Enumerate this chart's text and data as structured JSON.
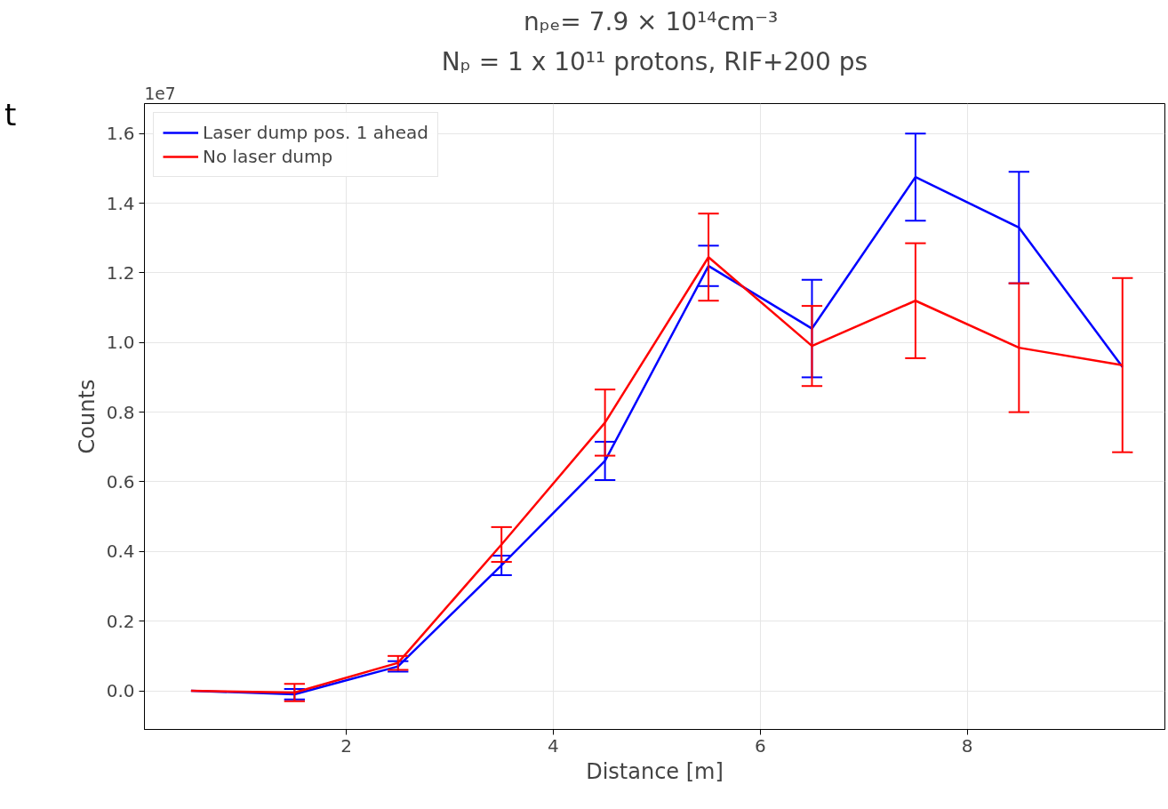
{
  "chart_data": {
    "type": "line",
    "title": "nₚₑ= 7.9  × 10¹⁴cm⁻³",
    "subtitle": "Nₚ = 1 x 10¹¹ protons, RIF+200 ps",
    "xlabel": "Distance [m]",
    "ylabel": "Counts",
    "annotations": [
      "1e7",
      "t"
    ],
    "x": [
      0.5,
      1.5,
      2.5,
      3.5,
      4.5,
      5.5,
      6.5,
      7.5,
      8.5,
      9.5
    ],
    "series": [
      {
        "name": "Laser dump pos. 1 ahead",
        "color": "#0000ff",
        "values": [
          0.0,
          -0.01,
          0.07,
          0.36,
          0.66,
          1.22,
          1.04,
          1.475,
          1.33,
          0.93
        ],
        "errors": [
          null,
          0.015,
          0.015,
          0.028,
          0.055,
          0.058,
          0.14,
          0.125,
          0.16,
          null
        ]
      },
      {
        "name": "No laser dump",
        "color": "#ff0000",
        "values": [
          0.0,
          -0.005,
          0.08,
          0.42,
          0.77,
          1.245,
          0.99,
          1.12,
          0.985,
          0.935
        ],
        "errors": [
          null,
          0.025,
          0.02,
          0.05,
          0.095,
          0.125,
          0.115,
          0.165,
          0.185,
          0.25
        ]
      }
    ],
    "xlim": [
      0.05,
      9.91
    ],
    "ylim": [
      -0.111,
      1.686
    ],
    "xticks": [
      2,
      4,
      6,
      8
    ],
    "yticks": [
      {
        "value": 0,
        "label": "0.0"
      },
      0.2,
      0.4,
      0.6,
      0.8,
      {
        "value": 1,
        "label": "1.0"
      },
      1.2,
      1.4,
      1.6
    ],
    "grid": true,
    "legend": "top left",
    "marker": "none",
    "line_style": "solid"
  }
}
